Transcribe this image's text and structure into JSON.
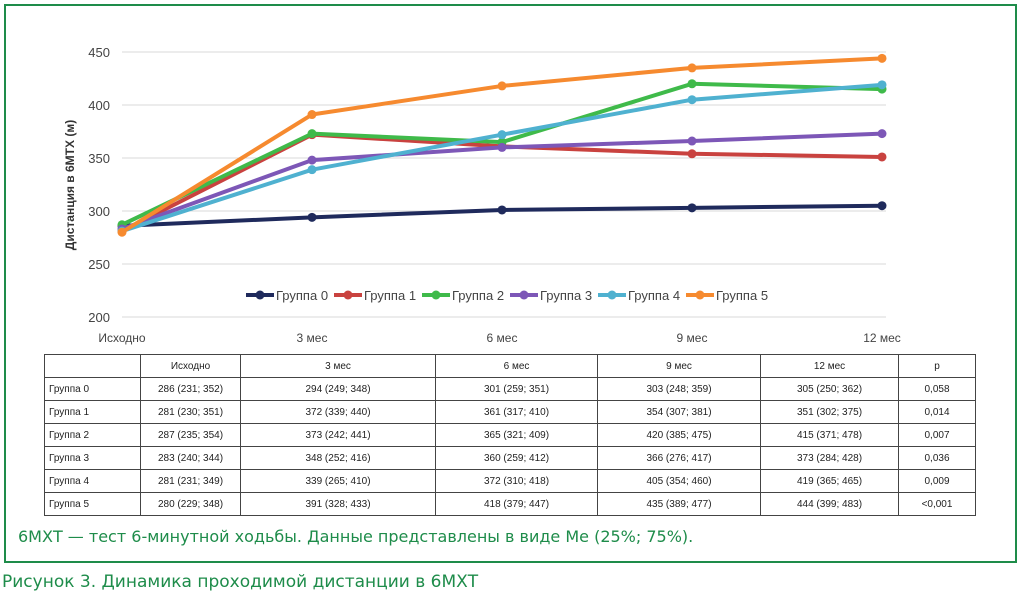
{
  "chart_data": {
    "type": "line",
    "ylabel": "Дистанция в 6МТХ (м)",
    "xlabel": "",
    "categories": [
      "Исходно",
      "3 мес",
      "6 мес",
      "9 мес",
      "12 мес"
    ],
    "ylim": [
      200,
      450
    ],
    "yticks": [
      200,
      250,
      300,
      350,
      400,
      450
    ],
    "grid": true,
    "legend_position": "bottom-inside",
    "series": [
      {
        "name": "Группа 0",
        "color": "#1f2a5c",
        "values": [
          286,
          294,
          301,
          303,
          305
        ]
      },
      {
        "name": "Группа 1",
        "color": "#c9423f",
        "values": [
          281,
          372,
          361,
          354,
          351
        ]
      },
      {
        "name": "Группа 2",
        "color": "#3fba4a",
        "values": [
          287,
          373,
          365,
          420,
          415
        ]
      },
      {
        "name": "Группа 3",
        "color": "#7d57b7",
        "values": [
          283,
          348,
          360,
          366,
          373
        ]
      },
      {
        "name": "Группа 4",
        "color": "#4fb1d0",
        "values": [
          281,
          339,
          372,
          405,
          419
        ]
      },
      {
        "name": "Группа 5",
        "color": "#f68a2f",
        "values": [
          280,
          391,
          418,
          435,
          444
        ]
      }
    ]
  },
  "table": {
    "headers": [
      "",
      "Исходно",
      "3 мес",
      "6 мес",
      "9 мес",
      "12 мес",
      "p"
    ],
    "rows": [
      [
        "Группа 0",
        "286 (231; 352)",
        "294 (249; 348)",
        "301 (259; 351)",
        "303 (248; 359)",
        "305 (250; 362)",
        "0,058"
      ],
      [
        "Группа 1",
        "281 (230; 351)",
        "372 (339; 440)",
        "361 (317; 410)",
        "354 (307; 381)",
        "351 (302; 375)",
        "0,014"
      ],
      [
        "Группа 2",
        "287 (235; 354)",
        "373 (242; 441)",
        "365 (321; 409)",
        "420 (385; 475)",
        "415 (371; 478)",
        "0,007"
      ],
      [
        "Группа 3",
        "283 (240; 344)",
        "348 (252; 416)",
        "360 (259; 412)",
        "366 (276; 417)",
        "373 (284; 428)",
        "0,036"
      ],
      [
        "Группа 4",
        "281 (231; 349)",
        "339 (265; 410)",
        "372 (310; 418)",
        "405 (354; 460)",
        "419 (365; 465)",
        "0,009"
      ],
      [
        "Группа 5",
        "280 (229; 348)",
        "391 (328; 433)",
        "418 (379; 447)",
        "435 (389; 477)",
        "444 (399; 483)",
        "<0,001"
      ]
    ]
  },
  "note": "6МХТ — тест 6-минутной ходьбы. Данные представлены в виде Me (25%; 75%).",
  "caption": "Рисунок 3. Динамика проходимой дистанции в 6МХТ"
}
